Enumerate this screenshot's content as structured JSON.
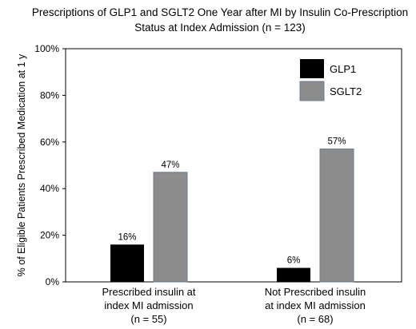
{
  "chart_data": {
    "type": "bar",
    "title_lines": [
      "Prescriptions of GLP1 and SGLT2 One Year after MI by Insulin Co-Prescription",
      "Status at Index Admission (n = 123)"
    ],
    "ylabel": "% of Eligible Patients Prescribed Medication at 1 y",
    "ylim": [
      0,
      100
    ],
    "yticks": [
      0,
      20,
      40,
      60,
      80,
      100
    ],
    "ytick_labels": [
      "0%",
      "20%",
      "40%",
      "60%",
      "80%",
      "100%"
    ],
    "categories": [
      [
        "Prescribed insulin at",
        "index MI admission",
        "(n = 55)"
      ],
      [
        "Not Prescribed insulin",
        "at index MI admission",
        "(n = 68)"
      ]
    ],
    "series": [
      {
        "name": "GLP1",
        "color": "#000000",
        "values": [
          16,
          6
        ],
        "labels": [
          "16%",
          "6%"
        ]
      },
      {
        "name": "SGLT2",
        "color": "#8c8c8c",
        "values": [
          47,
          57
        ],
        "labels": [
          "47%",
          "57%"
        ]
      }
    ],
    "legend_position": "top-right",
    "grid": false
  }
}
